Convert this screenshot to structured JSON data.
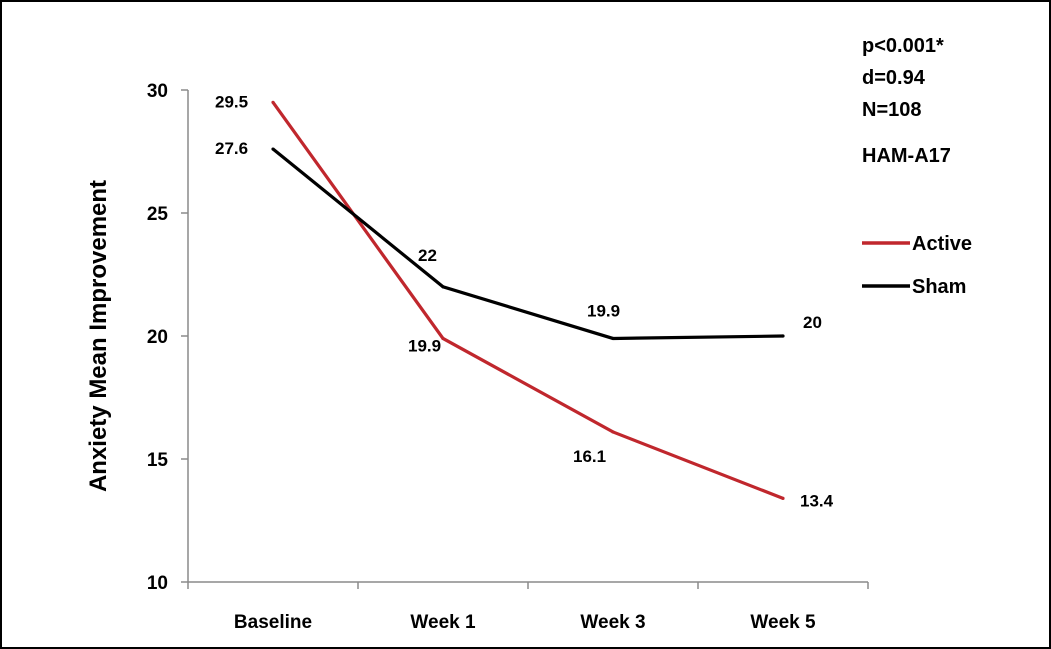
{
  "chart_data": {
    "type": "line",
    "categories": [
      "Baseline",
      "Week 1",
      "Week 3",
      "Week 5"
    ],
    "series": [
      {
        "name": "Active",
        "values": [
          29.5,
          19.9,
          16.1,
          13.4
        ],
        "labels": [
          "29.5",
          "19.9",
          "16.1",
          "13.4"
        ],
        "color": "#c0272d"
      },
      {
        "name": "Sham",
        "values": [
          27.6,
          22,
          19.9,
          20
        ],
        "labels": [
          "27.6",
          "22",
          "19.9",
          "20"
        ],
        "color": "#000000"
      }
    ],
    "ylabel": "Anxiety Mean Improvement",
    "xlabel": "",
    "ylim": [
      10,
      30
    ],
    "yticks": [
      "10",
      "15",
      "20",
      "25",
      "30"
    ],
    "grid": false,
    "legend": "right",
    "annotations": [
      "p<0.001*",
      "d=0.94",
      "N=108",
      "HAM-A17"
    ]
  }
}
